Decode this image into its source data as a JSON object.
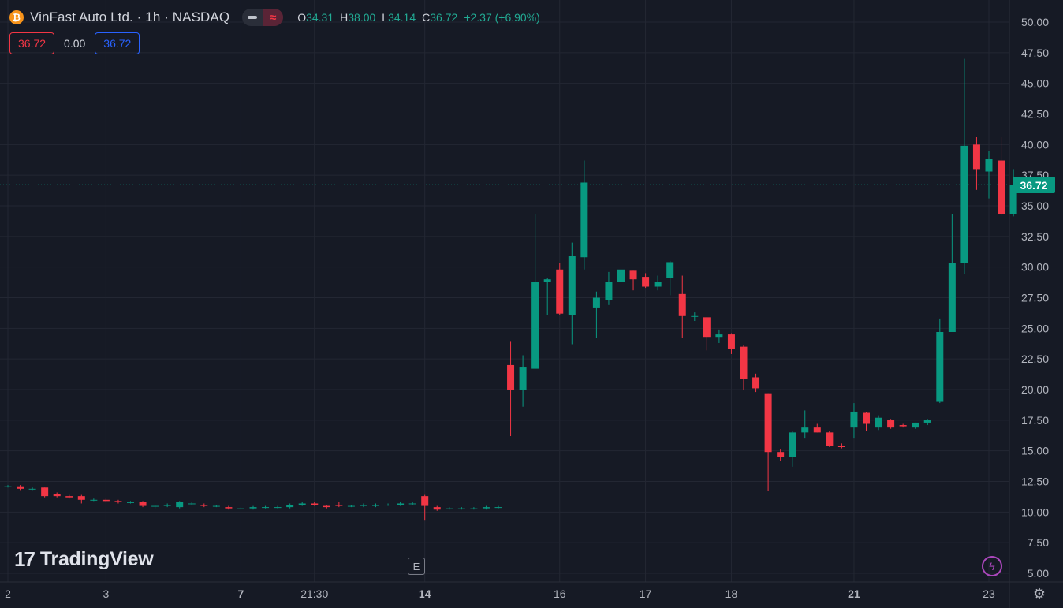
{
  "header": {
    "coin_glyph": "₿",
    "symbol_title": "VinFast Auto Ltd. · 1h · NASDAQ",
    "toggle_icon": "≈",
    "ohlc": {
      "o_label": "O",
      "o_value": "34.31",
      "h_label": "H",
      "h_value": "38.00",
      "l_label": "L",
      "l_value": "34.14",
      "c_label": "C",
      "c_value": "36.72",
      "change": "+2.37 (+6.90%)"
    }
  },
  "badges": {
    "left_value": "36.72",
    "middle_value": "0.00",
    "right_value": "36.72"
  },
  "logo": {
    "mark": "17",
    "text": "TradingView"
  },
  "event_marker": "E",
  "bolt_glyph": "ϟ",
  "gear_glyph": "⚙",
  "last_price_label": "36.72",
  "colors": {
    "background": "#161a25",
    "up": "#089981",
    "down": "#f23645",
    "grid": "#232733",
    "axis_text": "#b2b5be",
    "last_price_line": "#089981"
  },
  "chart_data": {
    "type": "candlestick",
    "symbol": "VinFast Auto Ltd.",
    "interval": "1h",
    "exchange": "NASDAQ",
    "y_axis": {
      "min": 5,
      "max": 50,
      "ticks": [
        "50.00",
        "47.50",
        "45.00",
        "42.50",
        "40.00",
        "37.50",
        "35.00",
        "32.50",
        "30.00",
        "27.50",
        "25.00",
        "22.50",
        "20.00",
        "17.50",
        "15.00",
        "12.50",
        "10.00",
        "7.50",
        "5.00"
      ]
    },
    "x_ticks": [
      {
        "label": "2",
        "bar": 0,
        "bold": false
      },
      {
        "label": "3",
        "bar": 8,
        "bold": false
      },
      {
        "label": "7",
        "bar": 19,
        "bold": true
      },
      {
        "label": "21:30",
        "bar": 25,
        "bold": false
      },
      {
        "label": "14",
        "bar": 34,
        "bold": true
      },
      {
        "label": "16",
        "bar": 45,
        "bold": false
      },
      {
        "label": "17",
        "bar": 52,
        "bold": false
      },
      {
        "label": "18",
        "bar": 59,
        "bold": false
      },
      {
        "label": "21",
        "bar": 69,
        "bold": true
      },
      {
        "label": "23",
        "bar": 80,
        "bold": false
      }
    ],
    "last_price": 36.72,
    "candles": [
      [
        12.1,
        12.2,
        12.0,
        12.1
      ],
      [
        12.1,
        12.2,
        11.8,
        11.9
      ],
      [
        11.9,
        12.0,
        11.8,
        11.9
      ],
      [
        12.0,
        12.0,
        11.2,
        11.3
      ],
      [
        11.5,
        11.6,
        11.2,
        11.3
      ],
      [
        11.3,
        11.4,
        11.1,
        11.2
      ],
      [
        11.3,
        11.4,
        10.7,
        11.0
      ],
      [
        11.0,
        11.1,
        10.9,
        11.0
      ],
      [
        11.0,
        11.1,
        10.8,
        10.9
      ],
      [
        10.9,
        11.0,
        10.7,
        10.8
      ],
      [
        10.8,
        10.9,
        10.7,
        10.8
      ],
      [
        10.8,
        10.9,
        10.4,
        10.5
      ],
      [
        10.5,
        10.6,
        10.3,
        10.5
      ],
      [
        10.5,
        10.7,
        10.4,
        10.6
      ],
      [
        10.4,
        10.9,
        10.3,
        10.8
      ],
      [
        10.7,
        10.8,
        10.6,
        10.7
      ],
      [
        10.6,
        10.7,
        10.4,
        10.5
      ],
      [
        10.5,
        10.6,
        10.4,
        10.5
      ],
      [
        10.4,
        10.5,
        10.2,
        10.3
      ],
      [
        10.3,
        10.4,
        10.2,
        10.3
      ],
      [
        10.3,
        10.5,
        10.2,
        10.4
      ],
      [
        10.4,
        10.5,
        10.3,
        10.4
      ],
      [
        10.4,
        10.5,
        10.3,
        10.4
      ],
      [
        10.4,
        10.7,
        10.3,
        10.6
      ],
      [
        10.6,
        10.8,
        10.5,
        10.7
      ],
      [
        10.7,
        10.8,
        10.5,
        10.6
      ],
      [
        10.5,
        10.6,
        10.3,
        10.4
      ],
      [
        10.6,
        10.8,
        10.4,
        10.5
      ],
      [
        10.5,
        10.6,
        10.4,
        10.5
      ],
      [
        10.5,
        10.7,
        10.4,
        10.6
      ],
      [
        10.5,
        10.7,
        10.4,
        10.6
      ],
      [
        10.6,
        10.7,
        10.5,
        10.6
      ],
      [
        10.6,
        10.8,
        10.5,
        10.7
      ],
      [
        10.7,
        10.8,
        10.6,
        10.7
      ],
      [
        11.3,
        11.4,
        9.3,
        10.5
      ],
      [
        10.4,
        10.5,
        10.1,
        10.2
      ],
      [
        10.3,
        10.4,
        10.2,
        10.3
      ],
      [
        10.3,
        10.4,
        10.2,
        10.3
      ],
      [
        10.3,
        10.4,
        10.2,
        10.3
      ],
      [
        10.3,
        10.5,
        10.2,
        10.4
      ],
      [
        10.4,
        10.5,
        10.3,
        10.4
      ],
      [
        22.0,
        23.9,
        16.2,
        20.0
      ],
      [
        20.0,
        22.8,
        18.6,
        21.8
      ],
      [
        21.7,
        34.3,
        21.7,
        28.8
      ],
      [
        28.8,
        29.1,
        26.1,
        29.0
      ],
      [
        29.8,
        30.3,
        26.1,
        26.2
      ],
      [
        26.1,
        32.0,
        23.7,
        30.9
      ],
      [
        30.8,
        38.7,
        29.8,
        36.9
      ],
      [
        26.7,
        28.0,
        24.2,
        27.5
      ],
      [
        27.3,
        29.6,
        26.9,
        28.8
      ],
      [
        28.8,
        30.4,
        28.1,
        29.8
      ],
      [
        29.7,
        29.7,
        28.1,
        29.0
      ],
      [
        29.2,
        29.5,
        28.3,
        28.4
      ],
      [
        28.4,
        29.3,
        28.1,
        28.8
      ],
      [
        29.1,
        30.5,
        27.7,
        30.4
      ],
      [
        27.8,
        29.3,
        24.2,
        26.0
      ],
      [
        26.0,
        26.3,
        25.6,
        26.0
      ],
      [
        25.9,
        25.9,
        23.2,
        24.3
      ],
      [
        24.3,
        24.9,
        23.8,
        24.5
      ],
      [
        24.5,
        24.6,
        22.9,
        23.3
      ],
      [
        23.5,
        23.6,
        20.0,
        20.9
      ],
      [
        21.0,
        21.3,
        19.8,
        20.1
      ],
      [
        19.7,
        19.7,
        11.7,
        14.9
      ],
      [
        14.9,
        15.1,
        14.2,
        14.5
      ],
      [
        14.5,
        16.6,
        13.7,
        16.5
      ],
      [
        16.5,
        18.3,
        16.0,
        16.9
      ],
      [
        16.9,
        17.2,
        16.5,
        16.5
      ],
      [
        16.5,
        16.6,
        15.3,
        15.4
      ],
      [
        15.4,
        15.6,
        15.2,
        15.3
      ],
      [
        16.9,
        18.9,
        16.0,
        18.2
      ],
      [
        18.1,
        18.2,
        16.6,
        17.2
      ],
      [
        16.9,
        17.9,
        16.7,
        17.7
      ],
      [
        17.5,
        17.6,
        16.8,
        16.9
      ],
      [
        17.1,
        17.2,
        16.9,
        17.0
      ],
      [
        16.9,
        17.3,
        16.8,
        17.3
      ],
      [
        17.3,
        17.6,
        17.1,
        17.5
      ],
      [
        19.0,
        25.8,
        18.9,
        24.7
      ],
      [
        24.7,
        34.3,
        24.7,
        30.3
      ],
      [
        30.3,
        47.0,
        29.4,
        39.9
      ],
      [
        40.0,
        40.6,
        36.3,
        38.0
      ],
      [
        37.8,
        39.5,
        35.6,
        38.8
      ],
      [
        38.7,
        40.6,
        34.2,
        34.31
      ],
      [
        34.31,
        38.0,
        34.14,
        36.72
      ]
    ]
  }
}
